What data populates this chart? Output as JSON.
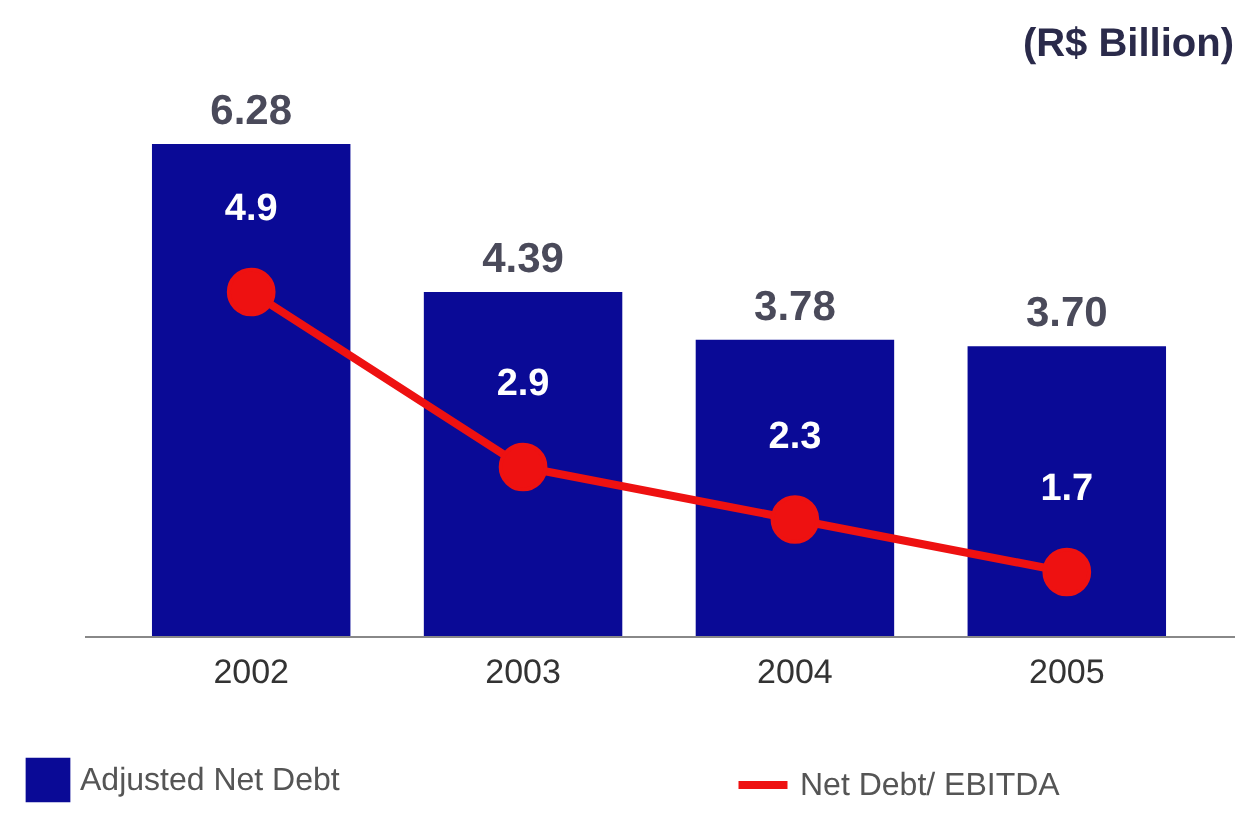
{
  "chart_data": {
    "type": "bar",
    "title": "(R$ Billion)",
    "categories": [
      "2002",
      "2003",
      "2004",
      "2005"
    ],
    "series": [
      {
        "name": "Adjusted Net Debt",
        "color": "#0a0a96",
        "values": [
          6.28,
          4.39,
          3.78,
          3.7
        ],
        "value_labels": [
          "6.28",
          "4.39",
          "3.78",
          "3.70"
        ]
      },
      {
        "name": "Net Debt/ EBITDA",
        "type": "line",
        "axis": "y2",
        "color": "#ee1111",
        "values": [
          4.9,
          2.9,
          2.3,
          1.7
        ],
        "value_labels": [
          "4.9",
          "2.9",
          "2.3",
          "1.7"
        ]
      }
    ],
    "tick_labels": "x",
    "marker": "circle",
    "line_style": "solid",
    "legend": "bottom"
  }
}
